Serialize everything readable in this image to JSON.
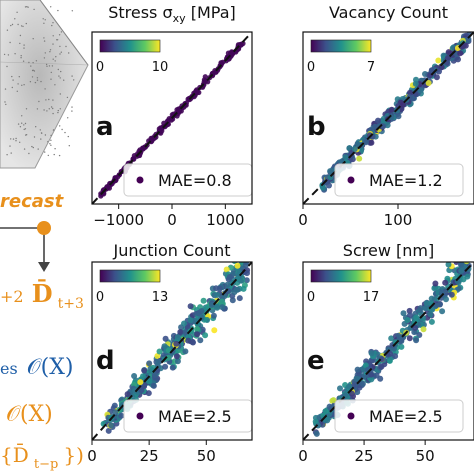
{
  "left_panel": {
    "forecast_label": "recast",
    "formula_orange_1": "+2",
    "formula_orange_2": "D̄",
    "formula_orange_3": "t+3",
    "formula_blue_1": "es",
    "formula_blue_2": "𝒪(X)",
    "formula_orange_4": "𝒪(X)",
    "formula_orange_5": "{D̄",
    "formula_orange_6": "t−p",
    "formula_orange_7": "})"
  },
  "colors": {
    "accent_orange": "#e8901c",
    "accent_blue": "#1f5fa8",
    "viridis": [
      "#440154",
      "#3b528b",
      "#21918c",
      "#5ec962",
      "#fde725"
    ]
  },
  "chart_data": [
    {
      "type": "scatter",
      "panel_letter": "a",
      "title": "Stress σ",
      "title_sub": "xy",
      "title_unit": " [MPa]",
      "xlim": [
        -1500,
        1500
      ],
      "ylim": [
        -1500,
        1500
      ],
      "xticks": [
        -1000,
        0,
        1000
      ],
      "xtick_labels": [
        "−1000",
        "0",
        "1000"
      ],
      "colorbar": {
        "min": 0,
        "max": 10,
        "labels": [
          "0",
          "10"
        ]
      },
      "mae_label": "MAE=0.8",
      "point_cloud": {
        "x_range": [
          -1350,
          1350
        ],
        "noise": 25,
        "density_color": 0.1
      }
    },
    {
      "type": "scatter",
      "panel_letter": "b",
      "title": "Vacancy Count",
      "title_sub": "",
      "title_unit": "",
      "xlim": [
        0,
        180
      ],
      "ylim": [
        0,
        180
      ],
      "xticks": [
        0,
        100
      ],
      "xtick_labels": [
        "0",
        "100"
      ],
      "colorbar": {
        "min": 0,
        "max": 7,
        "labels": [
          "0",
          "7"
        ]
      },
      "mae_label": "MAE=1.2",
      "point_cloud": {
        "x_range": [
          20,
          175
        ],
        "noise": 4,
        "density_color": 0.35
      }
    },
    {
      "type": "scatter",
      "panel_letter": "d",
      "title": "Junction Count",
      "title_sub": "",
      "title_unit": "",
      "xlim": [
        0,
        70
      ],
      "ylim": [
        0,
        70
      ],
      "xticks": [
        0,
        25,
        50
      ],
      "xtick_labels": [
        "0",
        "25",
        "50"
      ],
      "colorbar": {
        "min": 0,
        "max": 13,
        "labels": [
          "0",
          "13"
        ]
      },
      "mae_label": "MAE=2.5",
      "point_cloud": {
        "x_range": [
          5,
          68
        ],
        "noise": 3.2,
        "density_color": 0.45
      }
    },
    {
      "type": "scatter",
      "panel_letter": "e",
      "title": "Screw [nm]",
      "title_sub": "",
      "title_unit": "",
      "xlim": [
        0,
        70
      ],
      "ylim": [
        0,
        70
      ],
      "xticks": [
        0,
        25,
        50
      ],
      "xtick_labels": [
        "0",
        "25",
        "50"
      ],
      "colorbar": {
        "min": 0,
        "max": 17,
        "labels": [
          "0",
          "17"
        ]
      },
      "mae_label": "MAE=2.5",
      "point_cloud": {
        "x_range": [
          5,
          68
        ],
        "noise": 2.6,
        "density_color": 0.4
      }
    }
  ]
}
